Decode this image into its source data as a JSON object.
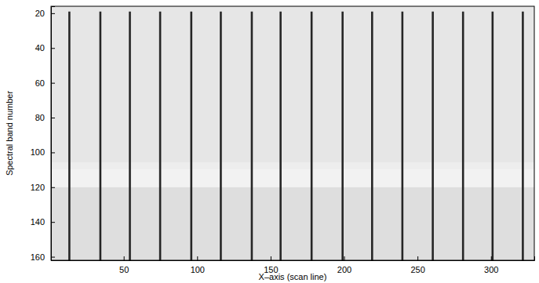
{
  "chart_data": {
    "type": "image",
    "x_label": "X–axis (scan line)",
    "y_label": "Spectral band number",
    "xlim": [
      0.5,
      329.5
    ],
    "ylim": [
      16,
      162
    ],
    "xticks": [
      50,
      100,
      150,
      200,
      250,
      300
    ],
    "yticks": [
      20,
      40,
      60,
      80,
      100,
      120,
      140,
      160
    ],
    "background": {
      "band_edges": [
        16,
        106,
        110,
        120,
        162
      ],
      "intensity": [
        0.9,
        0.93,
        0.95,
        0.87
      ]
    },
    "stripes": {
      "x": [
        13.0,
        34.1,
        54.2,
        74.8,
        96.0,
        116.1,
        137.2,
        156.8,
        177.9,
        199.0,
        219.1,
        239.7,
        260.4,
        281.0,
        301.1,
        321.7
      ],
      "band_range": [
        19,
        162
      ],
      "intensity": 0.15
    }
  }
}
